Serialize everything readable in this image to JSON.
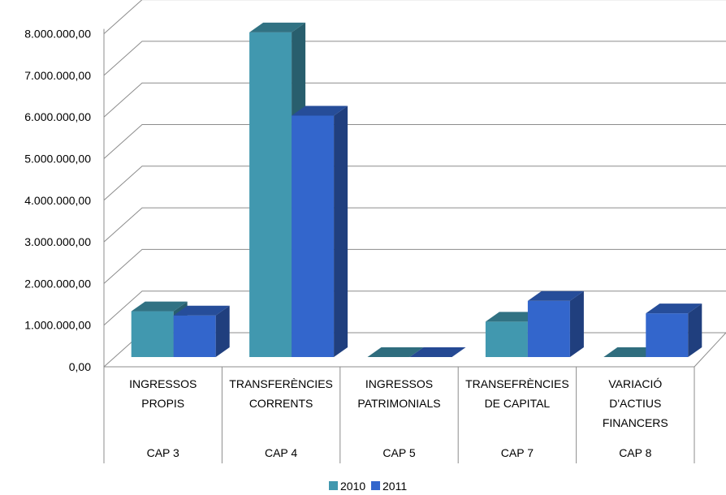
{
  "chart_data": {
    "type": "bar",
    "title": "",
    "xlabel": "",
    "ylabel": "",
    "ylim": [
      0,
      8000000
    ],
    "y_tick_step": 1000000,
    "y_tick_labels": [
      "0,00",
      "1.000.000,00",
      "2.000.000,00",
      "3.000.000,00",
      "4.000.000,00",
      "5.000.000,00",
      "6.000.000,00",
      "7.000.000,00",
      "8.000.000,00"
    ],
    "grid": true,
    "legend_position": "bottom",
    "categories": [
      {
        "lines": [
          "INGRESSOS",
          "PROPIS"
        ],
        "cap": "CAP 3"
      },
      {
        "lines": [
          "TRANSFERÈNCIES",
          "CORRENTS"
        ],
        "cap": "CAP 4"
      },
      {
        "lines": [
          "INGRESSOS",
          "PATRIMONIALS"
        ],
        "cap": "CAP 5"
      },
      {
        "lines": [
          "TRANSEFRÈNCIES",
          "DE CAPITAL"
        ],
        "cap": "CAP 7"
      },
      {
        "lines": [
          "VARIACIÓ",
          "D'ACTIUS",
          "FINANCERS"
        ],
        "cap": "CAP 8"
      }
    ],
    "series": [
      {
        "name": "2010",
        "color": "#4198AF",
        "values": [
          1100000,
          7800000,
          0,
          850000,
          0
        ]
      },
      {
        "name": "2011",
        "color": "#3366CC",
        "values": [
          1000000,
          5800000,
          0,
          1350000,
          1050000
        ]
      }
    ]
  }
}
